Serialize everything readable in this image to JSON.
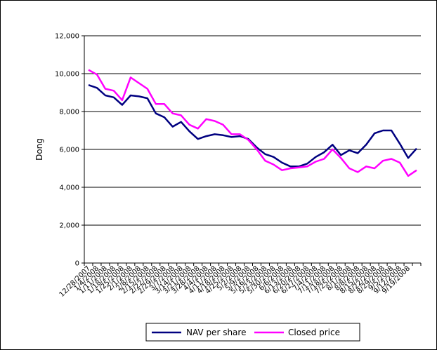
{
  "chart_data": {
    "type": "line",
    "title": "",
    "xlabel": "",
    "ylabel": "Dong",
    "ylim": [
      0,
      12000
    ],
    "yticks": [
      0,
      2000,
      4000,
      6000,
      8000,
      10000,
      12000
    ],
    "ytick_labels": [
      "0",
      "2,000",
      "4,000",
      "6,000",
      "8,000",
      "10,000",
      "12,000"
    ],
    "grid": true,
    "legend": "bottom",
    "x": [
      "12/28/2007",
      "1/4/2008",
      "1/11/2008",
      "1/18/2008",
      "1/25/2008",
      "2/1/2008",
      "2/8/2008",
      "2/15/2008",
      "2/22/2008",
      "2/29/2008",
      "3/7/2008",
      "3/14/2008",
      "3/21/2008",
      "3/28/2008",
      "4/4/2008",
      "4/11/2008",
      "4/18/2008",
      "4/25/2008",
      "5/2/2008",
      "5/9/2008",
      "5/16/2008",
      "5/23/2008",
      "5/30/2008",
      "6/6/2008",
      "6/13/2008",
      "6/20/2008",
      "6/27/2008",
      "7/4/2008",
      "7/11/2008",
      "7/18/2008",
      "7/25/2008",
      "8/1/2008",
      "8/8/2008",
      "8/15/2008",
      "8/22/2008",
      "8/29/2008",
      "9/5/2008",
      "9/12/2008",
      "9/19/2008",
      "9/26/2008"
    ],
    "x_tick_labels": [
      "12/28/2007",
      "1/4/2008",
      "1/11/2008",
      "1/18/2008",
      "1/25/2008",
      "2/1/2008",
      "2/8/2008",
      "2/15/2008",
      "2/22/2008",
      "2/29/2008",
      "3/7/2008",
      "3/14/2008",
      "3/21/2008",
      "3/28/2008",
      "4/4/2008",
      "4/11/2008",
      "4/18/2008",
      "4/25/2008",
      "5/2/2008",
      "5/9/2008",
      "5/16/2008",
      "5/23/2008",
      "5/30/2008",
      "6/6/2008",
      "6/13/2008",
      "6/20/2008",
      "6/27/2008",
      "7/4/2008",
      "7/11/2008",
      "7/18/2008",
      "7/25/2008",
      "8/1/2008",
      "8/8/2008",
      "8/15/2008",
      "8/22/2008",
      "8/29/2008",
      "9/5/2008",
      "9/12/2008",
      "9/19/2008",
      ""
    ],
    "series": [
      {
        "name": "NAV per share",
        "color": "#000080",
        "values": [
          9400,
          9250,
          8850,
          8750,
          8350,
          8850,
          8800,
          8700,
          7900,
          7700,
          7200,
          7450,
          6950,
          6550,
          6700,
          6800,
          6750,
          6650,
          6700,
          6550,
          6100,
          5750,
          5600,
          5300,
          5100,
          5100,
          5250,
          5600,
          5850,
          6250,
          5700,
          5950,
          5800,
          6250,
          6850,
          7000,
          7000,
          6300,
          5550,
          6050
        ]
      },
      {
        "name": "Closed price",
        "color": "#ff00ff",
        "values": [
          10200,
          9950,
          9200,
          9100,
          8600,
          9800,
          9500,
          9200,
          8400,
          8400,
          7900,
          7800,
          7300,
          7100,
          7600,
          7500,
          7300,
          6800,
          6800,
          6500,
          6000,
          5400,
          5200,
          4900,
          5000,
          5050,
          5100,
          5350,
          5500,
          6000,
          5550,
          5000,
          4800,
          5100,
          5000,
          5400,
          5500,
          5300,
          4600,
          4900
        ]
      }
    ]
  }
}
